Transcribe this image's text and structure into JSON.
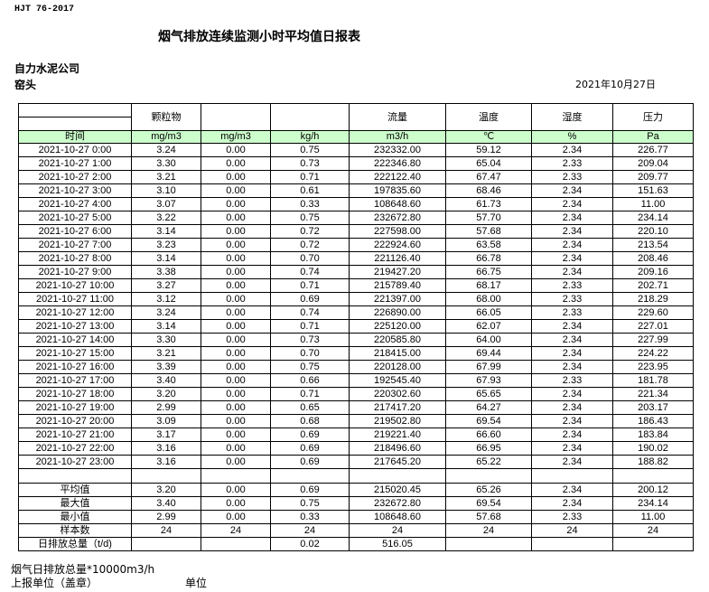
{
  "standard": "HJT  76-2017",
  "title": "烟气排放连续监测小时平均值日报表",
  "company": "自力水泥公司",
  "site": "窑头",
  "date": "2021年10月27日",
  "header": [
    "",
    "颗粒物",
    "",
    "",
    "流量",
    "温度",
    "湿度",
    "压力"
  ],
  "units": [
    "时间",
    "mg/m3",
    "mg/m3",
    "kg/h",
    "m3/h",
    "℃",
    "%",
    "Pa"
  ],
  "unit_row_color": "#ccffcc",
  "rows": [
    [
      "2021-10-27 0:00",
      "3.24",
      "0.00",
      "0.75",
      "232332.00",
      "59.12",
      "2.34",
      "226.77"
    ],
    [
      "2021-10-27 1:00",
      "3.30",
      "0.00",
      "0.73",
      "222346.80",
      "65.04",
      "2.33",
      "209.04"
    ],
    [
      "2021-10-27 2:00",
      "3.21",
      "0.00",
      "0.71",
      "222122.40",
      "67.47",
      "2.33",
      "209.77"
    ],
    [
      "2021-10-27 3:00",
      "3.10",
      "0.00",
      "0.61",
      "197835.60",
      "68.46",
      "2.34",
      "151.63"
    ],
    [
      "2021-10-27 4:00",
      "3.07",
      "0.00",
      "0.33",
      "108648.60",
      "61.73",
      "2.34",
      "11.00"
    ],
    [
      "2021-10-27 5:00",
      "3.22",
      "0.00",
      "0.75",
      "232672.80",
      "57.70",
      "2.34",
      "234.14"
    ],
    [
      "2021-10-27 6:00",
      "3.14",
      "0.00",
      "0.72",
      "227598.00",
      "57.68",
      "2.34",
      "220.10"
    ],
    [
      "2021-10-27 7:00",
      "3.23",
      "0.00",
      "0.72",
      "222924.60",
      "63.58",
      "2.34",
      "213.54"
    ],
    [
      "2021-10-27 8:00",
      "3.14",
      "0.00",
      "0.70",
      "221126.40",
      "66.78",
      "2.34",
      "208.46"
    ],
    [
      "2021-10-27 9:00",
      "3.38",
      "0.00",
      "0.74",
      "219427.20",
      "66.75",
      "2.34",
      "209.16"
    ],
    [
      "2021-10-27 10:00",
      "3.27",
      "0.00",
      "0.71",
      "215789.40",
      "68.17",
      "2.33",
      "202.71"
    ],
    [
      "2021-10-27 11:00",
      "3.12",
      "0.00",
      "0.69",
      "221397.00",
      "68.00",
      "2.33",
      "218.29"
    ],
    [
      "2021-10-27 12:00",
      "3.24",
      "0.00",
      "0.74",
      "226890.00",
      "66.05",
      "2.33",
      "229.60"
    ],
    [
      "2021-10-27 13:00",
      "3.14",
      "0.00",
      "0.71",
      "225120.00",
      "62.07",
      "2.34",
      "227.01"
    ],
    [
      "2021-10-27 14:00",
      "3.30",
      "0.00",
      "0.73",
      "220585.80",
      "64.00",
      "2.34",
      "227.99"
    ],
    [
      "2021-10-27 15:00",
      "3.21",
      "0.00",
      "0.70",
      "218415.00",
      "69.44",
      "2.34",
      "224.22"
    ],
    [
      "2021-10-27 16:00",
      "3.39",
      "0.00",
      "0.75",
      "220128.00",
      "67.99",
      "2.34",
      "223.95"
    ],
    [
      "2021-10-27 17:00",
      "3.40",
      "0.00",
      "0.66",
      "192545.40",
      "67.93",
      "2.33",
      "181.78"
    ],
    [
      "2021-10-27 18:00",
      "3.20",
      "0.00",
      "0.71",
      "220302.60",
      "65.65",
      "2.34",
      "221.34"
    ],
    [
      "2021-10-27 19:00",
      "2.99",
      "0.00",
      "0.65",
      "217417.20",
      "64.27",
      "2.34",
      "203.17"
    ],
    [
      "2021-10-27 20:00",
      "3.09",
      "0.00",
      "0.68",
      "219502.80",
      "69.54",
      "2.34",
      "186.43"
    ],
    [
      "2021-10-27 21:00",
      "3.17",
      "0.00",
      "0.69",
      "219221.40",
      "66.60",
      "2.34",
      "183.84"
    ],
    [
      "2021-10-27 22:00",
      "3.16",
      "0.00",
      "0.69",
      "218496.60",
      "66.95",
      "2.34",
      "190.02"
    ],
    [
      "2021-10-27 23:00",
      "3.16",
      "0.00",
      "0.69",
      "217645.20",
      "65.22",
      "2.34",
      "188.82"
    ]
  ],
  "stats": [
    [
      "平均值",
      "3.20",
      "0.00",
      "0.69",
      "215020.45",
      "65.26",
      "2.34",
      "200.12"
    ],
    [
      "最大值",
      "3.40",
      "0.00",
      "0.75",
      "232672.80",
      "69.54",
      "2.34",
      "234.14"
    ],
    [
      "最小值",
      "2.99",
      "0.00",
      "0.33",
      "108648.60",
      "57.68",
      "2.33",
      "11.00"
    ],
    [
      "样本数",
      "24",
      "24",
      "24",
      "24",
      "24",
      "24",
      "24"
    ],
    [
      "日排放总量（t/d)",
      "",
      "",
      "0.02",
      "516.05",
      "",
      "",
      ""
    ]
  ],
  "footer": {
    "note": "烟气日排放总量*10000m3/h",
    "reporter": "上报单位（盖章）",
    "unit": "单位"
  }
}
